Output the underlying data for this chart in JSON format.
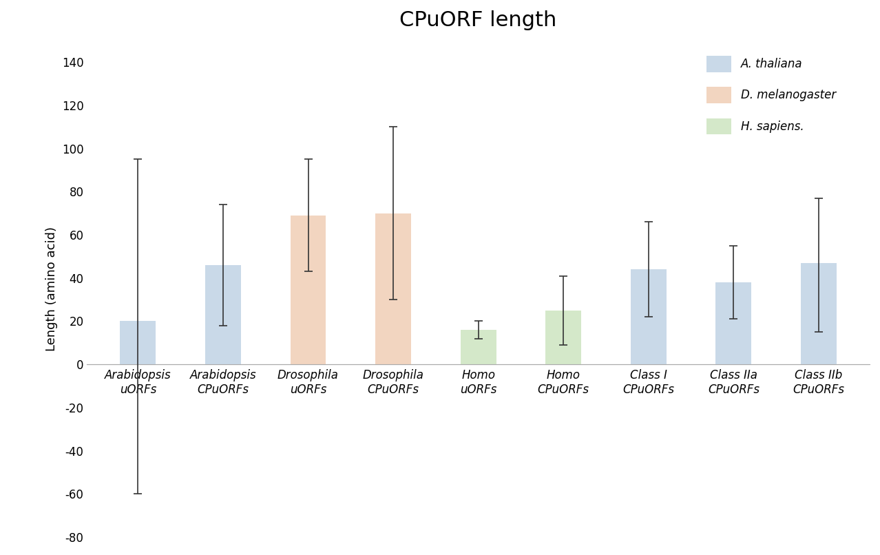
{
  "title": "CPuORF length",
  "ylabel": "Length (amino acid)",
  "categories": [
    "Arabidopsis\nuORFs",
    "Arabidopsis\nCPuORFs",
    "Drosophila\nuORFs",
    "Drosophila\nCPuORFs",
    "Homo\nuORFs",
    "Homo\nCPuORFs",
    "Class I\nCPuORFs",
    "Class IIa\nCPuORFs",
    "Class IIb\nCPuORFs"
  ],
  "values": [
    20,
    46,
    69,
    70,
    16,
    25,
    44,
    38,
    47
  ],
  "errors_upper": [
    75,
    28,
    26,
    40,
    4,
    16,
    22,
    17,
    30
  ],
  "errors_lower": [
    80,
    28,
    26,
    40,
    4,
    16,
    22,
    17,
    32
  ],
  "bar_colors": [
    "#c9d9e8",
    "#c9d9e8",
    "#f2d5c0",
    "#f2d5c0",
    "#d4e8c9",
    "#d4e8c9",
    "#c9d9e8",
    "#c9d9e8",
    "#c9d9e8"
  ],
  "legend_labels": [
    "A. thaliana",
    "D. melanogaster",
    "H. sapiens."
  ],
  "legend_colors": [
    "#c9d9e8",
    "#f2d5c0",
    "#d4e8c9"
  ],
  "ylim": [
    -80,
    150
  ],
  "yticks": [
    -80,
    -60,
    -40,
    -20,
    0,
    20,
    40,
    60,
    80,
    100,
    120,
    140
  ],
  "background_color": "#ffffff",
  "title_fontsize": 22,
  "label_fontsize": 13,
  "tick_fontsize": 12
}
